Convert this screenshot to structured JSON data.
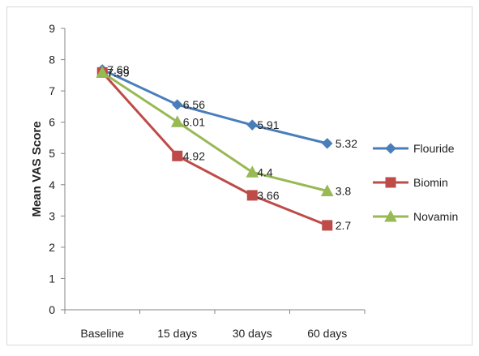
{
  "chart_data": {
    "type": "line",
    "title": "",
    "xlabel": "",
    "ylabel": "Mean VAS Score",
    "categories": [
      "Baseline",
      "15 days",
      "30 days",
      "60 days"
    ],
    "ylim": [
      0,
      9
    ],
    "yticks": [
      0,
      1,
      2,
      3,
      4,
      5,
      6,
      7,
      8,
      9
    ],
    "grid": false,
    "legend_position": "right",
    "series": [
      {
        "name": "Flouride",
        "values": [
          7.68,
          6.56,
          5.91,
          5.32
        ],
        "labels": [
          "7.68",
          "6.56",
          "5.91",
          "5.32"
        ],
        "color": "#4a7ebb",
        "marker": "diamond"
      },
      {
        "name": "Biomin",
        "values": [
          7.59,
          4.92,
          3.66,
          2.7
        ],
        "labels": [
          "7.59",
          "4.92",
          "3.66",
          "2.7"
        ],
        "color": "#be4b48",
        "marker": "square"
      },
      {
        "name": "Novamin",
        "values": [
          7.59,
          6.01,
          4.4,
          3.8
        ],
        "labels": [
          "7.59",
          "6.01",
          "4.4",
          "3.8"
        ],
        "color": "#98b954",
        "marker": "triangle"
      }
    ]
  }
}
